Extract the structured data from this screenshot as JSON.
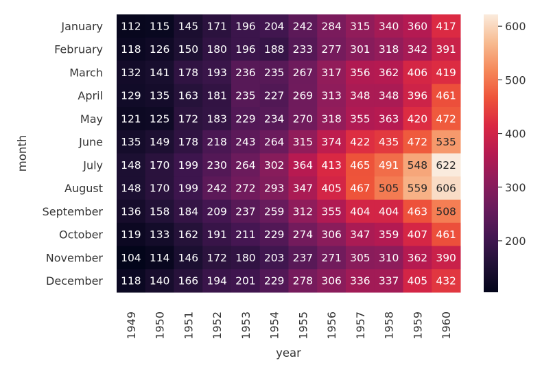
{
  "chart_data": {
    "type": "heatmap",
    "xlabel": "year",
    "ylabel": "month",
    "x_categories": [
      "1949",
      "1950",
      "1951",
      "1952",
      "1953",
      "1954",
      "1955",
      "1956",
      "1957",
      "1958",
      "1959",
      "1960"
    ],
    "y_categories": [
      "January",
      "February",
      "March",
      "April",
      "May",
      "June",
      "July",
      "August",
      "September",
      "October",
      "November",
      "December"
    ],
    "values": [
      [
        112,
        115,
        145,
        171,
        196,
        204,
        242,
        284,
        315,
        340,
        360,
        417
      ],
      [
        118,
        126,
        150,
        180,
        196,
        188,
        233,
        277,
        301,
        318,
        342,
        391
      ],
      [
        132,
        141,
        178,
        193,
        236,
        235,
        267,
        317,
        356,
        362,
        406,
        419
      ],
      [
        129,
        135,
        163,
        181,
        235,
        227,
        269,
        313,
        348,
        348,
        396,
        461
      ],
      [
        121,
        125,
        172,
        183,
        229,
        234,
        270,
        318,
        355,
        363,
        420,
        472
      ],
      [
        135,
        149,
        178,
        218,
        243,
        264,
        315,
        374,
        422,
        435,
        472,
        535
      ],
      [
        148,
        170,
        199,
        230,
        264,
        302,
        364,
        413,
        465,
        491,
        548,
        622
      ],
      [
        148,
        170,
        199,
        242,
        272,
        293,
        347,
        405,
        467,
        505,
        559,
        606
      ],
      [
        136,
        158,
        184,
        209,
        237,
        259,
        312,
        355,
        404,
        404,
        463,
        508
      ],
      [
        119,
        133,
        162,
        191,
        211,
        229,
        274,
        306,
        347,
        359,
        407,
        461
      ],
      [
        104,
        114,
        146,
        172,
        180,
        203,
        237,
        271,
        305,
        310,
        362,
        390
      ],
      [
        118,
        140,
        166,
        194,
        201,
        229,
        278,
        306,
        336,
        337,
        405,
        432
      ]
    ],
    "annotate": true,
    "colormap": "rocket",
    "colorbar": {
      "min": 104,
      "max": 622,
      "ticks": [
        200,
        300,
        400,
        500,
        600
      ]
    }
  }
}
